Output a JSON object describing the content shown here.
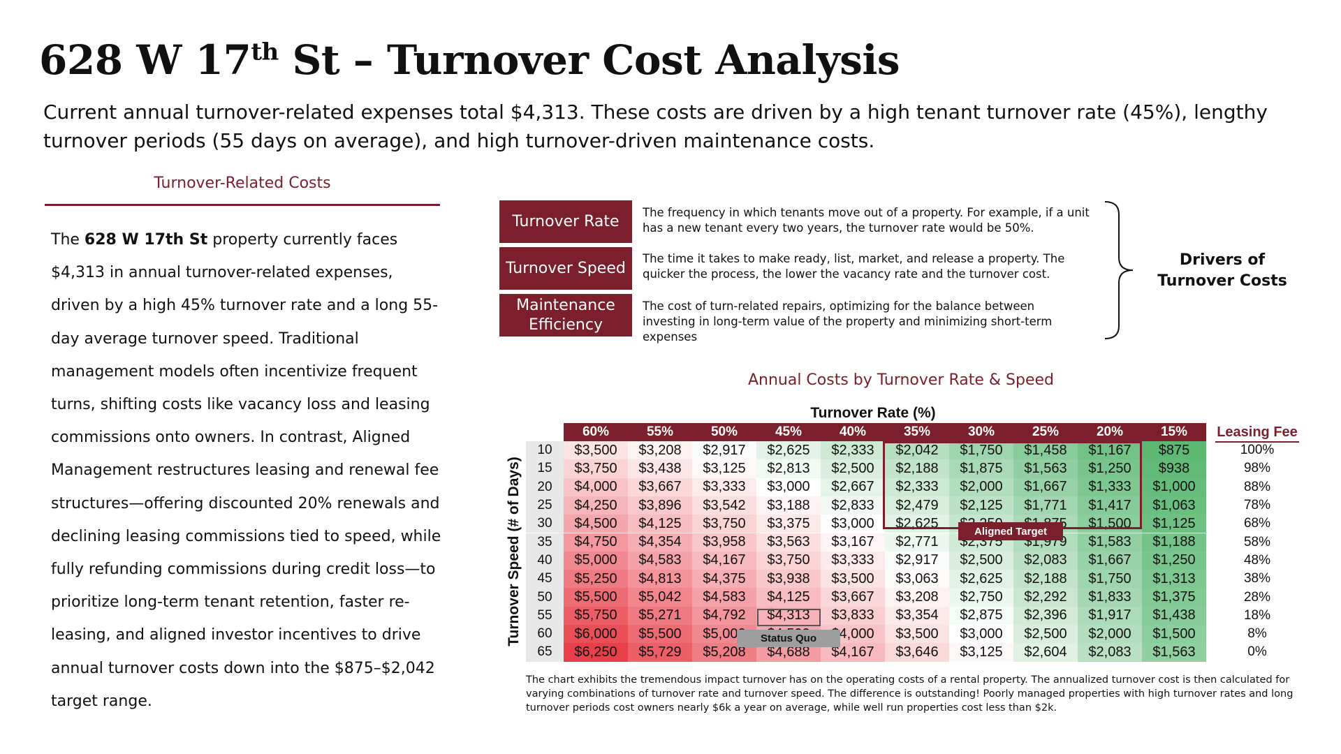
{
  "header": {
    "title_pre": "628 W 17",
    "title_sup": "th",
    "title_post": " St – Turnover Cost Analysis",
    "subtitle": "Current annual turnover-related expenses total $4,313. These costs are driven by a high tenant turnover rate (45%), lengthy turnover periods (55 days on average), and high turnover-driven maintenance costs."
  },
  "left_panel": {
    "heading": "Turnover-Related Costs",
    "body_pre": "The ",
    "body_bold": "628 W 17th St",
    "body_post": " property currently faces $4,313 in annual turnover-related expenses, driven by a high 45% turnover rate and a long 55-day average turnover speed. Traditional management models often incentivize frequent turns, shifting costs like vacancy loss and leasing commissions onto owners. In contrast, Aligned Management restructures leasing and renewal fee structures—offering discounted 20% renewals and declining leasing commissions tied to speed, while fully refunding commissions during credit loss—to prioritize long-term tenant retention, faster re-leasing, and aligned investor incentives to drive annual turnover costs down into the $875–$2,042 target range."
  },
  "drivers": {
    "items": [
      {
        "label": "Turnover Rate",
        "description": "The frequency in which tenants move out of a property. For example, if a unit has a new tenant every two years, the turnover rate would be 50%."
      },
      {
        "label": "Turnover Speed",
        "description": "The time it takes to make ready, list, market, and release a property. The quicker the process, the lower the vacancy rate and the turnover cost."
      },
      {
        "label": "Maintenance Efficiency",
        "description": "The cost of turn-related repairs, optimizing for the balance between investing in long-term value of the property and minimizing short-term expenses"
      }
    ],
    "caption": "Drivers of Turnover Costs"
  },
  "chart_data": {
    "type": "heatmap",
    "title": "Annual Costs by Turnover Rate & Speed",
    "xlabel": "Turnover Rate (%)",
    "ylabel": "Turnover Speed (# of Days)",
    "x": [
      "60%",
      "55%",
      "50%",
      "45%",
      "40%",
      "35%",
      "30%",
      "25%",
      "20%",
      "15%"
    ],
    "y": [
      "10",
      "15",
      "20",
      "25",
      "30",
      "35",
      "40",
      "45",
      "50",
      "55",
      "60",
      "65"
    ],
    "cells": [
      [
        "$3,500",
        "$3,208",
        "$2,917",
        "$2,625",
        "$2,333",
        "$2,042",
        "$1,750",
        "$1,458",
        "$1,167",
        "$875"
      ],
      [
        "$3,750",
        "$3,438",
        "$3,125",
        "$2,813",
        "$2,500",
        "$2,188",
        "$1,875",
        "$1,563",
        "$1,250",
        "$938"
      ],
      [
        "$4,000",
        "$3,667",
        "$3,333",
        "$3,000",
        "$2,667",
        "$2,333",
        "$2,000",
        "$1,667",
        "$1,333",
        "$1,000"
      ],
      [
        "$4,250",
        "$3,896",
        "$3,542",
        "$3,188",
        "$2,833",
        "$2,479",
        "$2,125",
        "$1,771",
        "$1,417",
        "$1,063"
      ],
      [
        "$4,500",
        "$4,125",
        "$3,750",
        "$3,375",
        "$3,000",
        "$2,625",
        "$2,250",
        "$1,875",
        "$1,500",
        "$1,125"
      ],
      [
        "$4,750",
        "$4,354",
        "$3,958",
        "$3,563",
        "$3,167",
        "$2,771",
        "$2,375",
        "$1,979",
        "$1,583",
        "$1,188"
      ],
      [
        "$5,000",
        "$4,583",
        "$4,167",
        "$3,750",
        "$3,333",
        "$2,917",
        "$2,500",
        "$2,083",
        "$1,667",
        "$1,250"
      ],
      [
        "$5,250",
        "$4,813",
        "$4,375",
        "$3,938",
        "$3,500",
        "$3,063",
        "$2,625",
        "$2,188",
        "$1,750",
        "$1,313"
      ],
      [
        "$5,500",
        "$5,042",
        "$4,583",
        "$4,125",
        "$3,667",
        "$3,208",
        "$2,750",
        "$2,292",
        "$1,833",
        "$1,375"
      ],
      [
        "$5,750",
        "$5,271",
        "$4,792",
        "$4,313",
        "$3,833",
        "$3,354",
        "$2,875",
        "$2,396",
        "$1,917",
        "$1,438"
      ],
      [
        "$6,000",
        "$5,500",
        "$5,000",
        "$4,500",
        "$4,000",
        "$3,500",
        "$3,000",
        "$2,500",
        "$2,000",
        "$1,500"
      ],
      [
        "$6,250",
        "$5,729",
        "$5,208",
        "$4,688",
        "$4,167",
        "$3,646",
        "$3,125",
        "$2,604",
        "$2,083",
        "$1,563"
      ]
    ],
    "color_scale": {
      "low": "#5cb873",
      "mid": "#ffffff",
      "high": "#e8404a"
    },
    "leasing_fee": {
      "label": "Leasing Fee",
      "values": [
        "100%",
        "98%",
        "88%",
        "78%",
        "68%",
        "58%",
        "48%",
        "38%",
        "28%",
        "18%",
        "8%",
        "0%"
      ]
    },
    "annotations": {
      "aligned_target": "Aligned Target",
      "status_quo": "Status Quo"
    },
    "note": "The chart exhibits the tremendous impact turnover has on the operating costs of a rental property. The annualized turnover cost is then calculated for varying combinations of turnover rate and turnover speed. The difference is outstanding! Poorly managed properties with high turnover rates and long turnover periods cost owners nearly $6k a year on average, while well run properties cost less than $2k."
  },
  "colors": {
    "accent": "#7a1f2b",
    "row_header_bg": "#e8e8e8",
    "status_quo_tag": "#9e9e9e"
  }
}
